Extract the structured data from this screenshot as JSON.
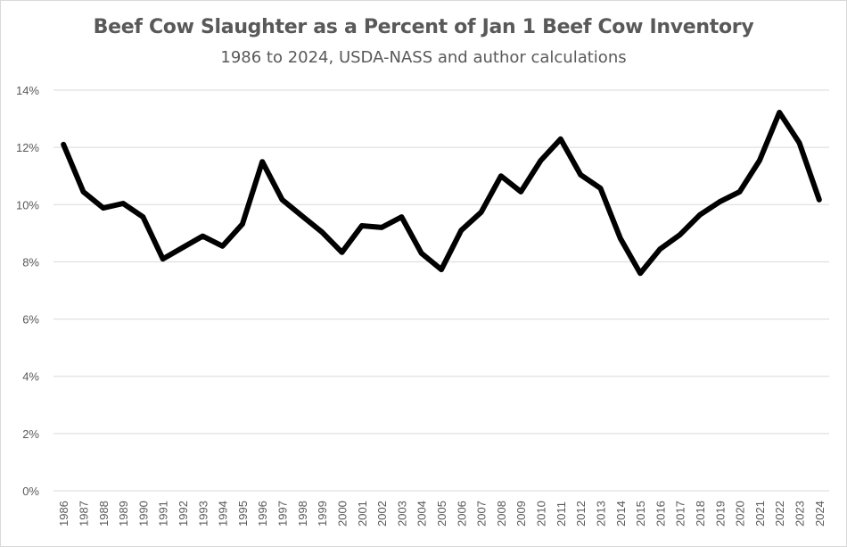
{
  "chart_data": {
    "type": "line",
    "title": "Beef Cow Slaughter as a Percent of Jan 1 Beef Cow Inventory",
    "subtitle": "1986 to 2024, USDA-NASS and author calculations",
    "xlabel": "",
    "ylabel": "",
    "ylim": [
      0,
      14
    ],
    "y_ticks": [
      "0%",
      "2%",
      "4%",
      "6%",
      "8%",
      "10%",
      "12%",
      "14%"
    ],
    "grid": "horizontal",
    "line_color": "#000000",
    "categories": [
      "1986",
      "1987",
      "1988",
      "1989",
      "1990",
      "1991",
      "1992",
      "1993",
      "1994",
      "1995",
      "1996",
      "1997",
      "1998",
      "1999",
      "2000",
      "2001",
      "2002",
      "2003",
      "2004",
      "2005",
      "2006",
      "2007",
      "2008",
      "2009",
      "2010",
      "2011",
      "2012",
      "2013",
      "2014",
      "2015",
      "2016",
      "2017",
      "2018",
      "2019",
      "2020",
      "2021",
      "2022",
      "2023",
      "2024"
    ],
    "values": [
      12.1,
      10.45,
      9.88,
      10.04,
      9.57,
      8.1,
      8.5,
      8.9,
      8.55,
      9.32,
      11.5,
      10.17,
      9.6,
      9.04,
      8.33,
      9.26,
      9.2,
      9.57,
      8.3,
      7.73,
      9.1,
      9.73,
      11.0,
      10.45,
      11.54,
      12.29,
      11.04,
      10.57,
      8.82,
      7.6,
      8.45,
      8.95,
      9.64,
      10.1,
      10.45,
      11.54,
      13.22,
      12.16,
      10.17
    ]
  }
}
